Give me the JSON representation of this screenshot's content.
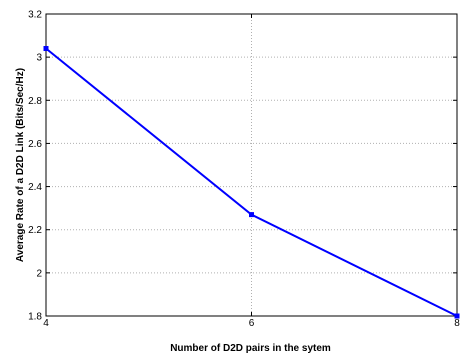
{
  "chart_data": {
    "type": "line",
    "title": "",
    "xlabel": "Number of D2D pairs in the sytem",
    "ylabel": "Average Rate of a D2D Link (Bits/Sec/Hz)",
    "xlim": [
      4,
      8
    ],
    "ylim": [
      1.8,
      3.2
    ],
    "x_ticks": [
      "4",
      "6",
      "8"
    ],
    "y_ticks": [
      "1.8",
      "2",
      "2.2",
      "2.4",
      "2.6",
      "2.8",
      "3",
      "3.2"
    ],
    "grid": true,
    "series": [
      {
        "color": "#0000ff",
        "x": [
          4,
          6,
          8
        ],
        "y": [
          3.04,
          2.27,
          1.8
        ]
      }
    ]
  }
}
